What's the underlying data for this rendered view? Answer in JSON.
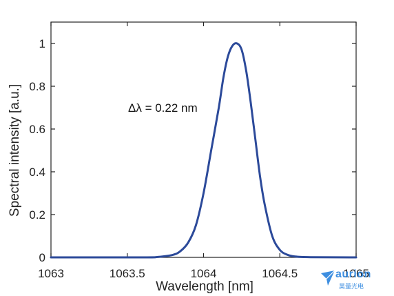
{
  "chart_data": {
    "type": "line",
    "title": "",
    "xlabel": "Wavelength [nm]",
    "ylabel": "Spectral intensity [a.u.]",
    "xlim": [
      1063,
      1065
    ],
    "ylim": [
      0,
      1.1
    ],
    "x_ticks": [
      1063,
      1063.5,
      1064,
      1064.5,
      1065
    ],
    "x_tick_labels": [
      "1063",
      "1063.5",
      "1064",
      "1064.5",
      "1065"
    ],
    "y_ticks": [
      0,
      0.2,
      0.4,
      0.6,
      0.8,
      1
    ],
    "y_tick_labels": [
      "0",
      "0.2",
      "0.4",
      "0.6",
      "0.8",
      "1"
    ],
    "grid": false,
    "annotation": "Δλ = 0.22 nm",
    "series": [
      {
        "color": "#2c4a9a",
        "x": [
          1063.0,
          1063.6,
          1063.7,
          1063.8,
          1063.85,
          1063.9,
          1063.95,
          1064.0,
          1064.05,
          1064.1,
          1064.13,
          1064.16,
          1064.19,
          1064.22,
          1064.25,
          1064.28,
          1064.31,
          1064.34,
          1064.37,
          1064.4,
          1064.45,
          1064.5,
          1064.55,
          1064.6,
          1064.7,
          1065.0
        ],
        "y": [
          0,
          0,
          0.002,
          0.012,
          0.03,
          0.07,
          0.15,
          0.3,
          0.5,
          0.7,
          0.84,
          0.94,
          0.99,
          1.0,
          0.97,
          0.87,
          0.72,
          0.55,
          0.38,
          0.25,
          0.1,
          0.035,
          0.012,
          0.004,
          0.001,
          0
        ]
      }
    ]
  },
  "logo": {
    "name": "aurion",
    "subtitle": "昊量光电",
    "color": "#3d8ee0"
  }
}
